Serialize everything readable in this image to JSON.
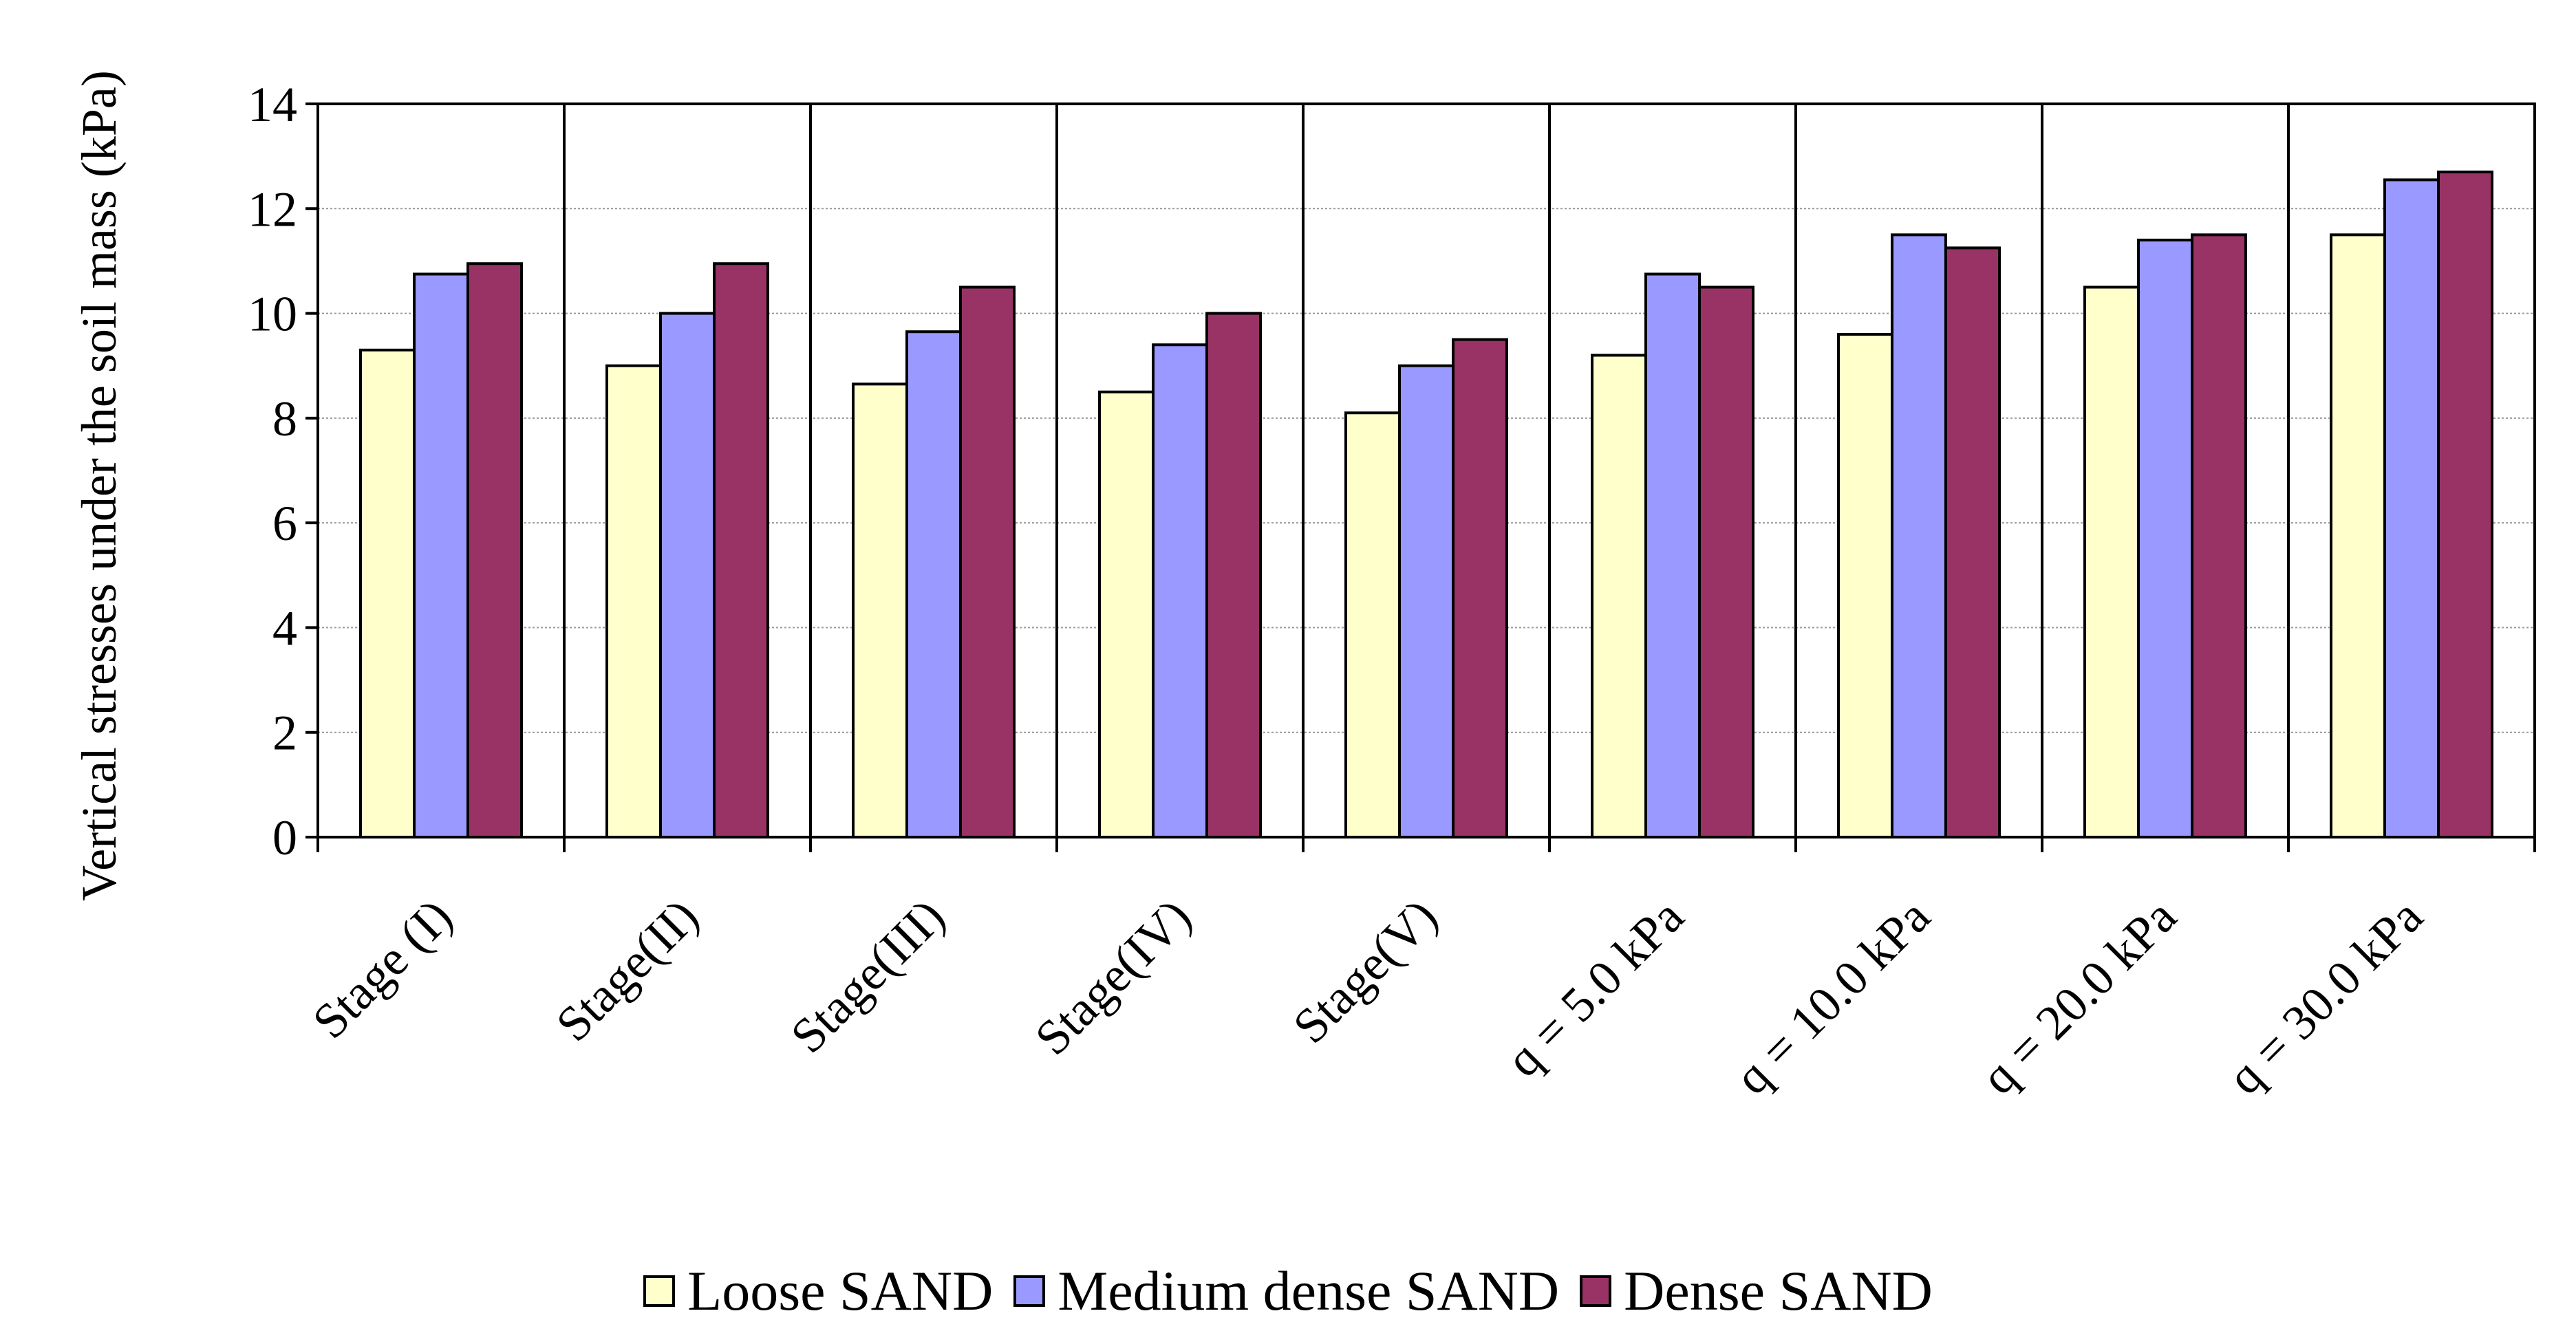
{
  "chart_data": {
    "type": "bar",
    "ylabel": "Vertical stresses under the soil mass (kPa)",
    "categories": [
      "Stage (I)",
      "Stage(II)",
      "Stage(III)",
      "Stage(IV)",
      "Stage(V)",
      "q = 5.0 kPa",
      "q = 10.0 kPa",
      "q = 20.0 kPa",
      "q = 30.0 kPa"
    ],
    "series": [
      {
        "name": "Loose SAND",
        "color": "#ffffcc",
        "values": [
          9.3,
          9.0,
          8.65,
          8.5,
          8.1,
          9.2,
          9.6,
          10.5,
          11.5
        ]
      },
      {
        "name": "Medium dense SAND",
        "color": "#9999ff",
        "values": [
          10.75,
          10.0,
          9.65,
          9.4,
          9.0,
          10.75,
          11.5,
          11.4,
          12.55
        ]
      },
      {
        "name": "Dense SAND",
        "color": "#993366",
        "values": [
          10.95,
          10.95,
          10.5,
          10.0,
          9.5,
          10.5,
          11.25,
          11.5,
          12.7
        ]
      }
    ],
    "ylim": [
      0,
      14
    ],
    "yticks": [
      0,
      2,
      4,
      6,
      8,
      10,
      12,
      14
    ],
    "grid": true,
    "legend": "bottom"
  }
}
